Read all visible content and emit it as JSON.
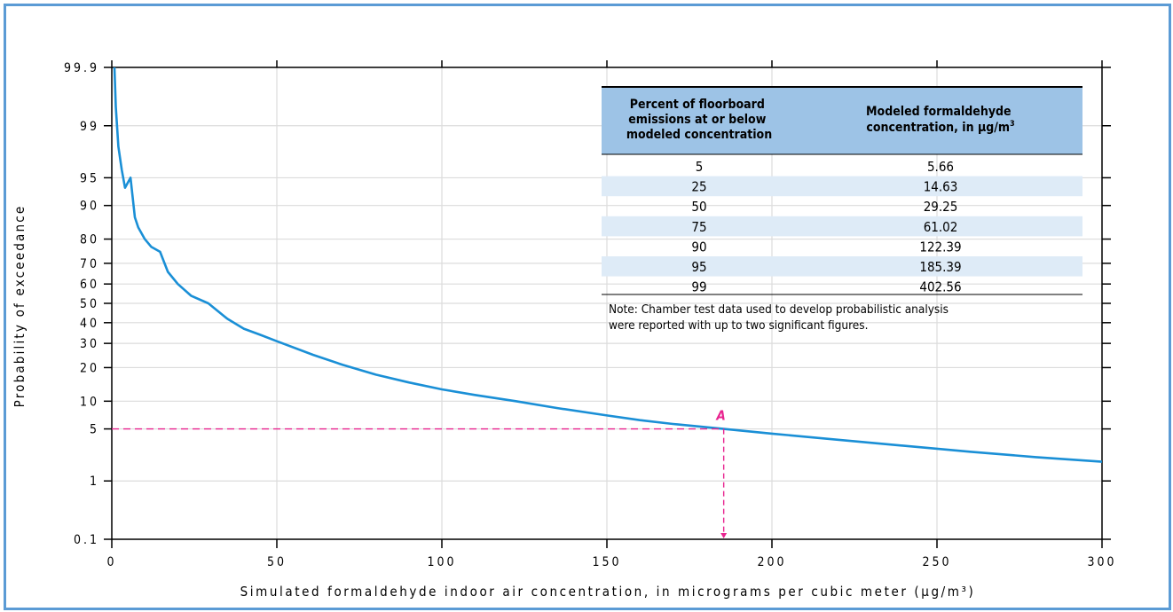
{
  "chart_data": {
    "type": "line",
    "xlabel": "Simulated formaldehyde indoor air concentration, in micrograms per cubic meter (µg/m³)",
    "ylabel": "Probability of exceedance",
    "xlim": [
      0,
      300
    ],
    "ylim": [
      0.1,
      99.9
    ],
    "y_scale": "probability",
    "x_ticks": [
      "0",
      "50",
      "100",
      "150",
      "200",
      "250",
      "300"
    ],
    "y_ticks": [
      "99.9",
      "99",
      "95",
      "90",
      "80",
      "70",
      "60",
      "50",
      "40",
      "30",
      "20",
      "10",
      "5",
      "1",
      "0.1"
    ],
    "grid": true,
    "series": [
      {
        "color": "#1a8fd6",
        "x": [
          0.8,
          1.2,
          2,
          3,
          4,
          5.66,
          7,
          8,
          10,
          12,
          14.63,
          17,
          20,
          24,
          29.25,
          35,
          40,
          45,
          50,
          61.02,
          70,
          80,
          90,
          100,
          110,
          122.39,
          135,
          150,
          160,
          170,
          185.39,
          200,
          220,
          240,
          260,
          280,
          300
        ],
        "y": [
          99.9,
          99.5,
          98,
          96,
          93.5,
          95,
          87,
          84,
          80,
          77,
          75,
          66,
          60,
          54,
          50,
          42,
          37,
          34,
          31,
          25,
          21,
          17.5,
          15,
          13,
          11.5,
          10,
          8.5,
          7.1,
          6.3,
          5.7,
          5,
          4.4,
          3.7,
          3.1,
          2.6,
          2.2,
          1.9
        ]
      }
    ],
    "annotation": {
      "label": "A",
      "x": 185.39,
      "y": 5,
      "color": "#e8248f"
    },
    "inset_table": {
      "headers": [
        "Percent of floorboard emissions at or below modeled concentration",
        "Modeled formaldehyde concentration, in µg/m³"
      ],
      "rows": [
        [
          "5",
          "5.66"
        ],
        [
          "25",
          "14.63"
        ],
        [
          "50",
          "29.25"
        ],
        [
          "75",
          "61.02"
        ],
        [
          "90",
          "122.39"
        ],
        [
          "95",
          "185.39"
        ],
        [
          "99",
          "402.56"
        ]
      ],
      "note_line1": "Note: Chamber test data used to develop probabilistic analysis",
      "note_line2": "were reported with up to two significant figures.",
      "header_bg": "#9dc3e6",
      "stripe_bg": "#deebf7"
    }
  }
}
